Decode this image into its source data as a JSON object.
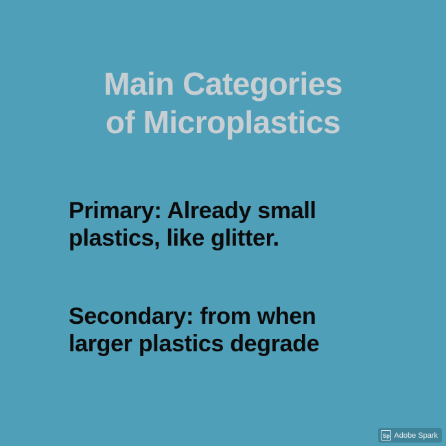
{
  "title": {
    "line1": "Main Categories",
    "line2": "of Microplastics"
  },
  "primary": {
    "line1": "Primary: Already small",
    "line2": "plastics, like glitter."
  },
  "secondary": {
    "line1": "Secondary: from when",
    "line2": "larger plastics degrade"
  },
  "badge": {
    "icon_text": "Sp",
    "label": "Adobe Spark"
  },
  "colors": {
    "background": "#4f9fb9",
    "title": "#c8cfd3",
    "body_text": "#0b0b0b"
  }
}
